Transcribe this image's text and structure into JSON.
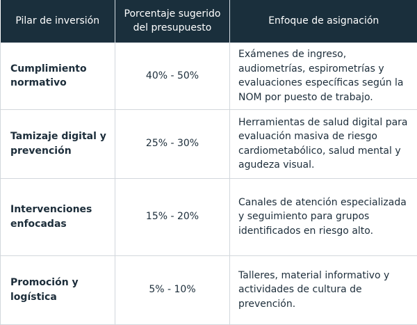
{
  "table": {
    "headers": [
      "Pilar de inversión",
      "Porcentaje sugerido del presupuesto",
      "Enfoque de asignación"
    ],
    "rows": [
      {
        "pillar": "Cumplimiento normativo",
        "percentage": "40% - 50%",
        "focus": "Exámenes de ingreso, audiometrías, espirometrías y evaluaciones específicas según la NOM por puesto de trabajo."
      },
      {
        "pillar": "Tamizaje digital y prevención",
        "percentage": "25% - 30%",
        "focus": "Herramientas de salud digital para evaluación masiva de riesgo cardiometabólico, salud mental y agudeza visual."
      },
      {
        "pillar": "Intervenciones enfocadas",
        "percentage": "15% - 20%",
        "focus": "Canales de atención especializada y seguimiento para grupos identificados en riesgo alto."
      },
      {
        "pillar": "Promoción y logística",
        "percentage": "5% - 10%",
        "focus": "Talleres, material informativo y actividades de cultura de prevención."
      }
    ]
  },
  "colors": {
    "header_bg": "#1a2f3c",
    "header_text": "#ffffff",
    "body_text": "#1c2d3a",
    "border": "#d2d7dc"
  }
}
